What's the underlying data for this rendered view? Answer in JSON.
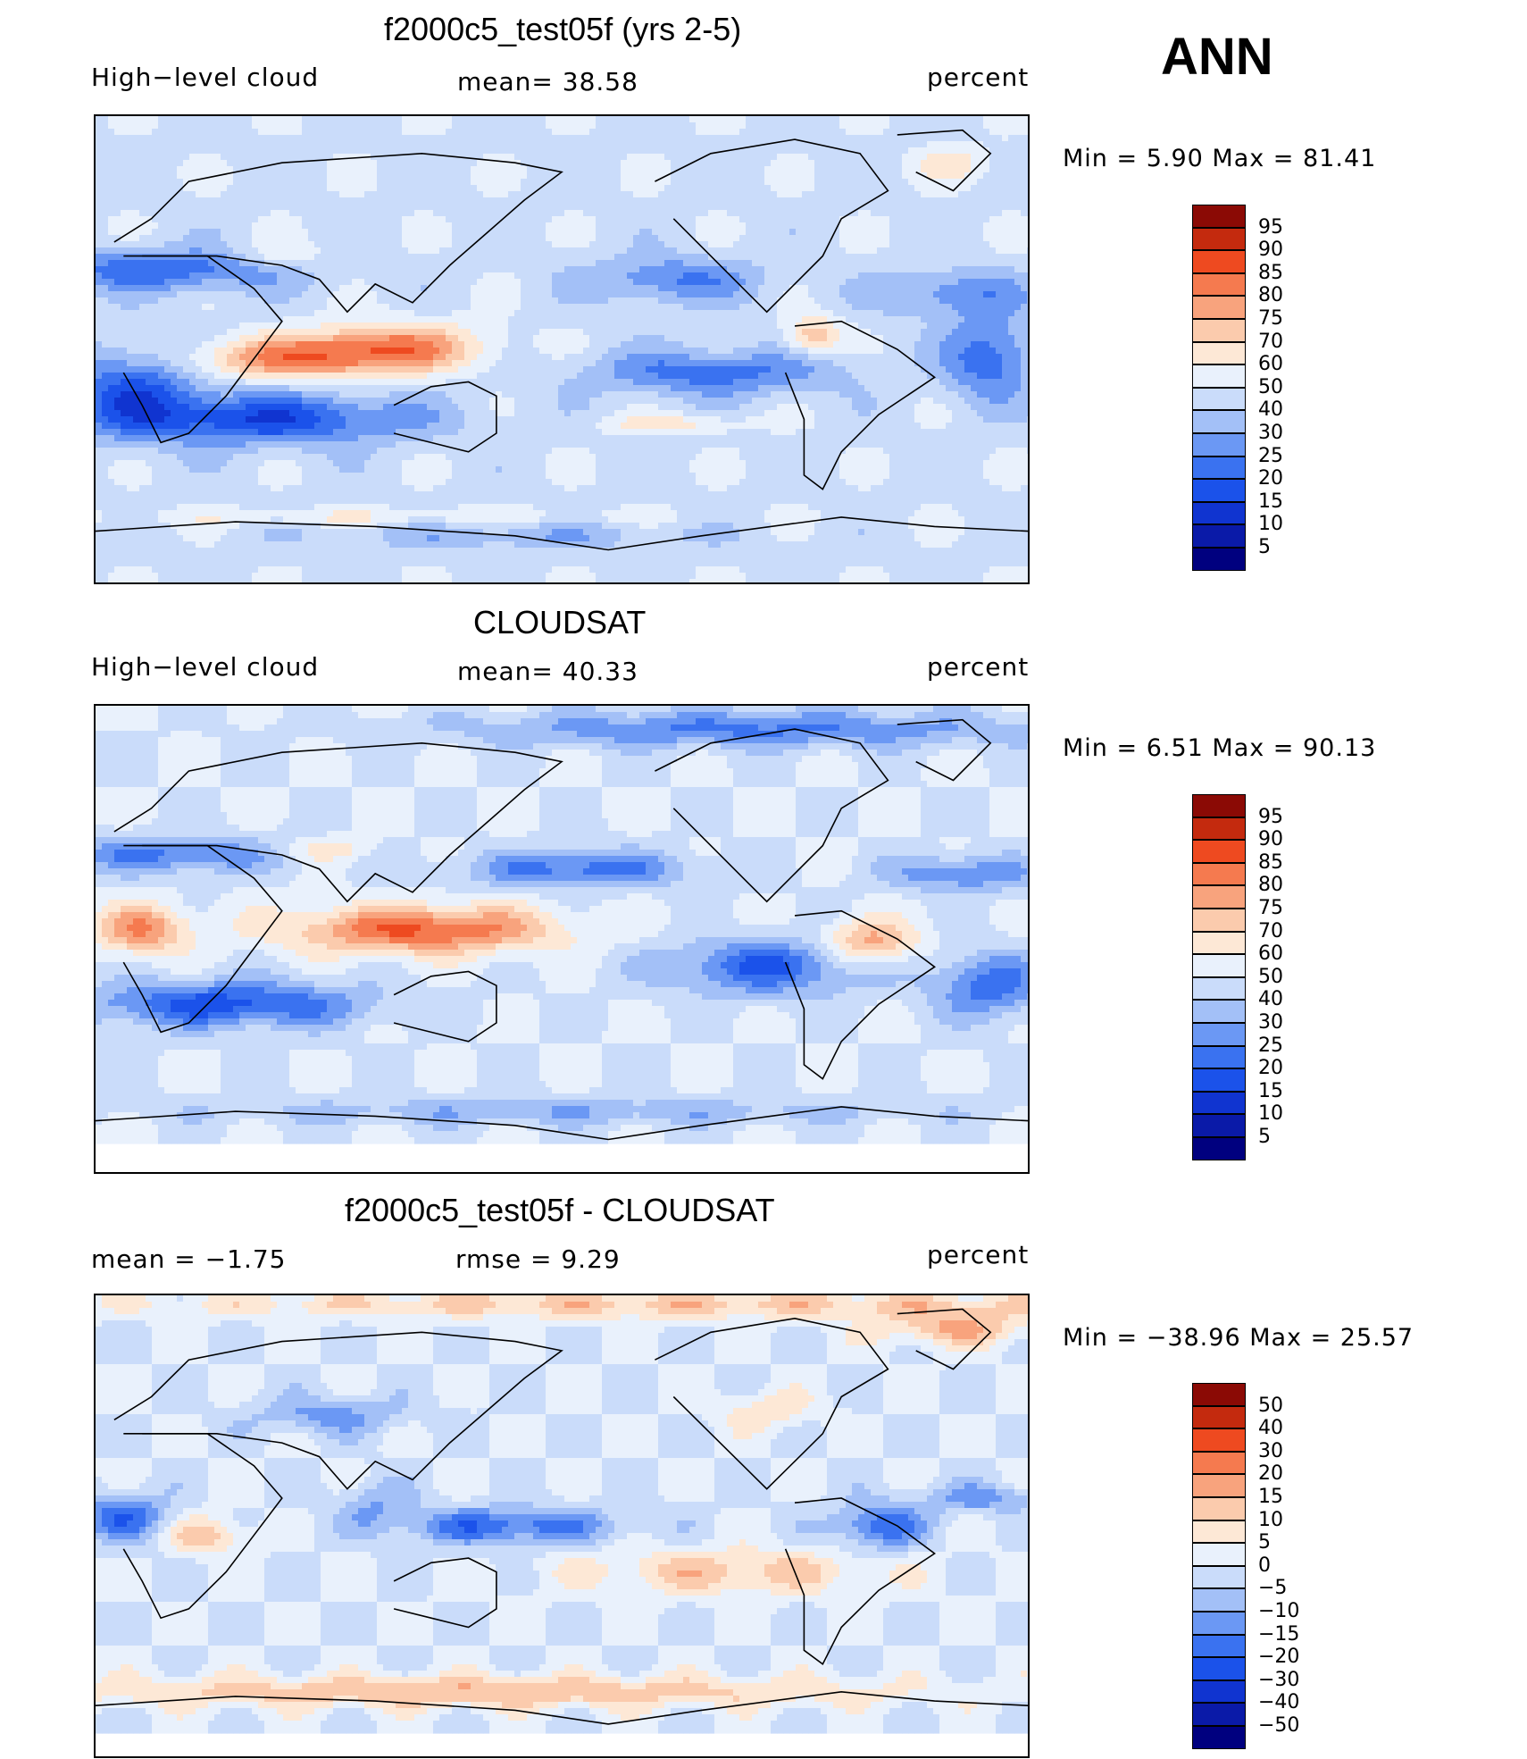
{
  "season": "ANN",
  "panels": [
    {
      "id": "model",
      "title": "f2000c5_test05f (yrs 2-5)",
      "left_label": "High−level cloud",
      "center_label": "mean=   38.58",
      "right_label": "percent",
      "minmax": "Min =    5.90  Max =   81.41",
      "colorbar_labels": [
        "95",
        "90",
        "85",
        "80",
        "75",
        "70",
        "60",
        "50",
        "40",
        "30",
        "25",
        "20",
        "15",
        "10",
        "5"
      ]
    },
    {
      "id": "obs",
      "title": "CLOUDSAT",
      "left_label": "High−level cloud",
      "center_label": "mean=   40.33",
      "right_label": "percent",
      "minmax": "Min =    6.51  Max =   90.13",
      "colorbar_labels": [
        "95",
        "90",
        "85",
        "80",
        "75",
        "70",
        "60",
        "50",
        "40",
        "30",
        "25",
        "20",
        "15",
        "10",
        "5"
      ]
    },
    {
      "id": "diff",
      "title": "f2000c5_test05f - CLOUDSAT",
      "left_label": "mean =   −1.75",
      "center_label": "rmse =     9.29",
      "right_label": "percent",
      "minmax": "Min = −38.96  Max =   25.57",
      "colorbar_labels": [
        "50",
        "40",
        "30",
        "20",
        "15",
        "10",
        "5",
        "0",
        "−5",
        "−10",
        "−15",
        "−20",
        "−30",
        "−40",
        "−50"
      ]
    }
  ],
  "colors": {
    "scale": [
      "#00007f",
      "#0a1aa8",
      "#1034d0",
      "#1b52ea",
      "#3a72f0",
      "#6b98f4",
      "#a3c0f7",
      "#cadcfa",
      "#e9f1fc",
      "#fde8d6",
      "#fbcbad",
      "#f8a37d",
      "#f57a4f",
      "#ee4a20",
      "#c42a0e",
      "#8b0a05"
    ]
  }
}
